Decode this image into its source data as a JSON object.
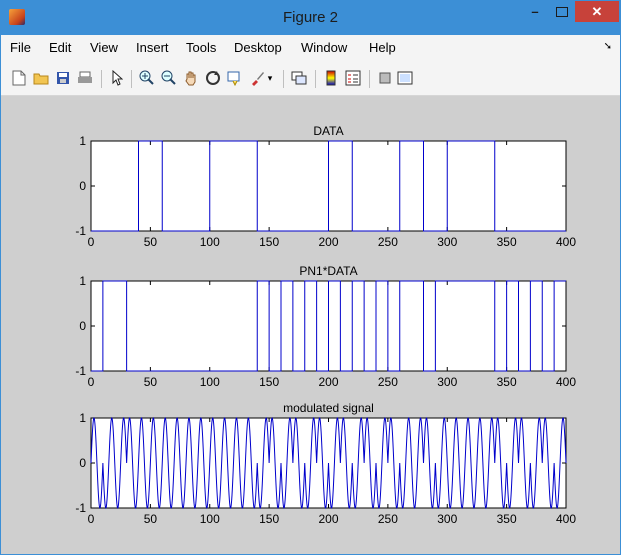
{
  "window": {
    "title": "Figure 2"
  },
  "menu": [
    "File",
    "Edit",
    "View",
    "Insert",
    "Tools",
    "Desktop",
    "Window",
    "Help"
  ],
  "toolbar_icons": [
    "new-figure-icon",
    "open-icon",
    "save-icon",
    "print-icon",
    "select-arrow-icon",
    "zoom-in-icon",
    "zoom-out-icon",
    "pan-icon",
    "rotate-icon",
    "data-cursor-icon",
    "brush-icon",
    "link-plot-icon",
    "colorbar-icon",
    "legend-icon",
    "hide-plot-tools-icon",
    "show-plot-tools-icon"
  ],
  "colors": {
    "titlebar": "#3c8fd6",
    "figure_bg": "#cfcfcf",
    "line": "#0000cc",
    "close": "#c7423a"
  },
  "chart_data": [
    {
      "type": "line",
      "title": "DATA",
      "xlim": [
        0,
        400
      ],
      "ylim": [
        -1,
        1
      ],
      "xticks": [
        "0",
        "50",
        "100",
        "150",
        "200",
        "250",
        "300",
        "350",
        "400"
      ],
      "yticks": [
        "1",
        "0",
        "-1"
      ],
      "series": [
        {
          "x": [
            0,
            40,
            60,
            100,
            140,
            200,
            220,
            260,
            280,
            300,
            340,
            400
          ],
          "values": [
            -1,
            1,
            -1,
            1,
            -1,
            1,
            -1,
            1,
            -1,
            1,
            -1,
            1
          ]
        }
      ]
    },
    {
      "type": "line",
      "title": "PN1*DATA",
      "xlim": [
        0,
        400
      ],
      "ylim": [
        -1,
        1
      ],
      "xticks": [
        "0",
        "50",
        "100",
        "150",
        "200",
        "250",
        "300",
        "350",
        "400"
      ],
      "yticks": [
        "1",
        "0",
        "-1"
      ],
      "series": [
        {
          "x": [
            0,
            10,
            30,
            140,
            150,
            160,
            170,
            180,
            190,
            200,
            210,
            220,
            230,
            240,
            250,
            260,
            280,
            290,
            340,
            350,
            360,
            370,
            380,
            390,
            400
          ],
          "values": [
            -1,
            1,
            -1,
            1,
            -1,
            1,
            -1,
            1,
            -1,
            1,
            -1,
            1,
            -1,
            1,
            -1,
            1,
            -1,
            1,
            -1,
            1,
            -1,
            1,
            -1,
            1,
            -1
          ]
        }
      ]
    },
    {
      "type": "line",
      "title": "modulated signal",
      "xlim": [
        0,
        400
      ],
      "ylim": [
        -1,
        1
      ],
      "xticks": [
        "0",
        "50",
        "100",
        "150",
        "200",
        "250",
        "300",
        "350",
        "400"
      ],
      "yticks": [
        "1",
        "0",
        "-1"
      ],
      "series": [
        {
          "function": "sin",
          "cycles_per_unit": 0.1,
          "phase_flips_at": [
            10,
            30,
            140,
            150,
            160,
            170,
            180,
            190,
            200,
            210,
            220,
            230,
            240,
            250,
            260,
            280,
            290,
            340,
            350,
            360,
            370,
            380,
            390
          ]
        }
      ]
    }
  ]
}
